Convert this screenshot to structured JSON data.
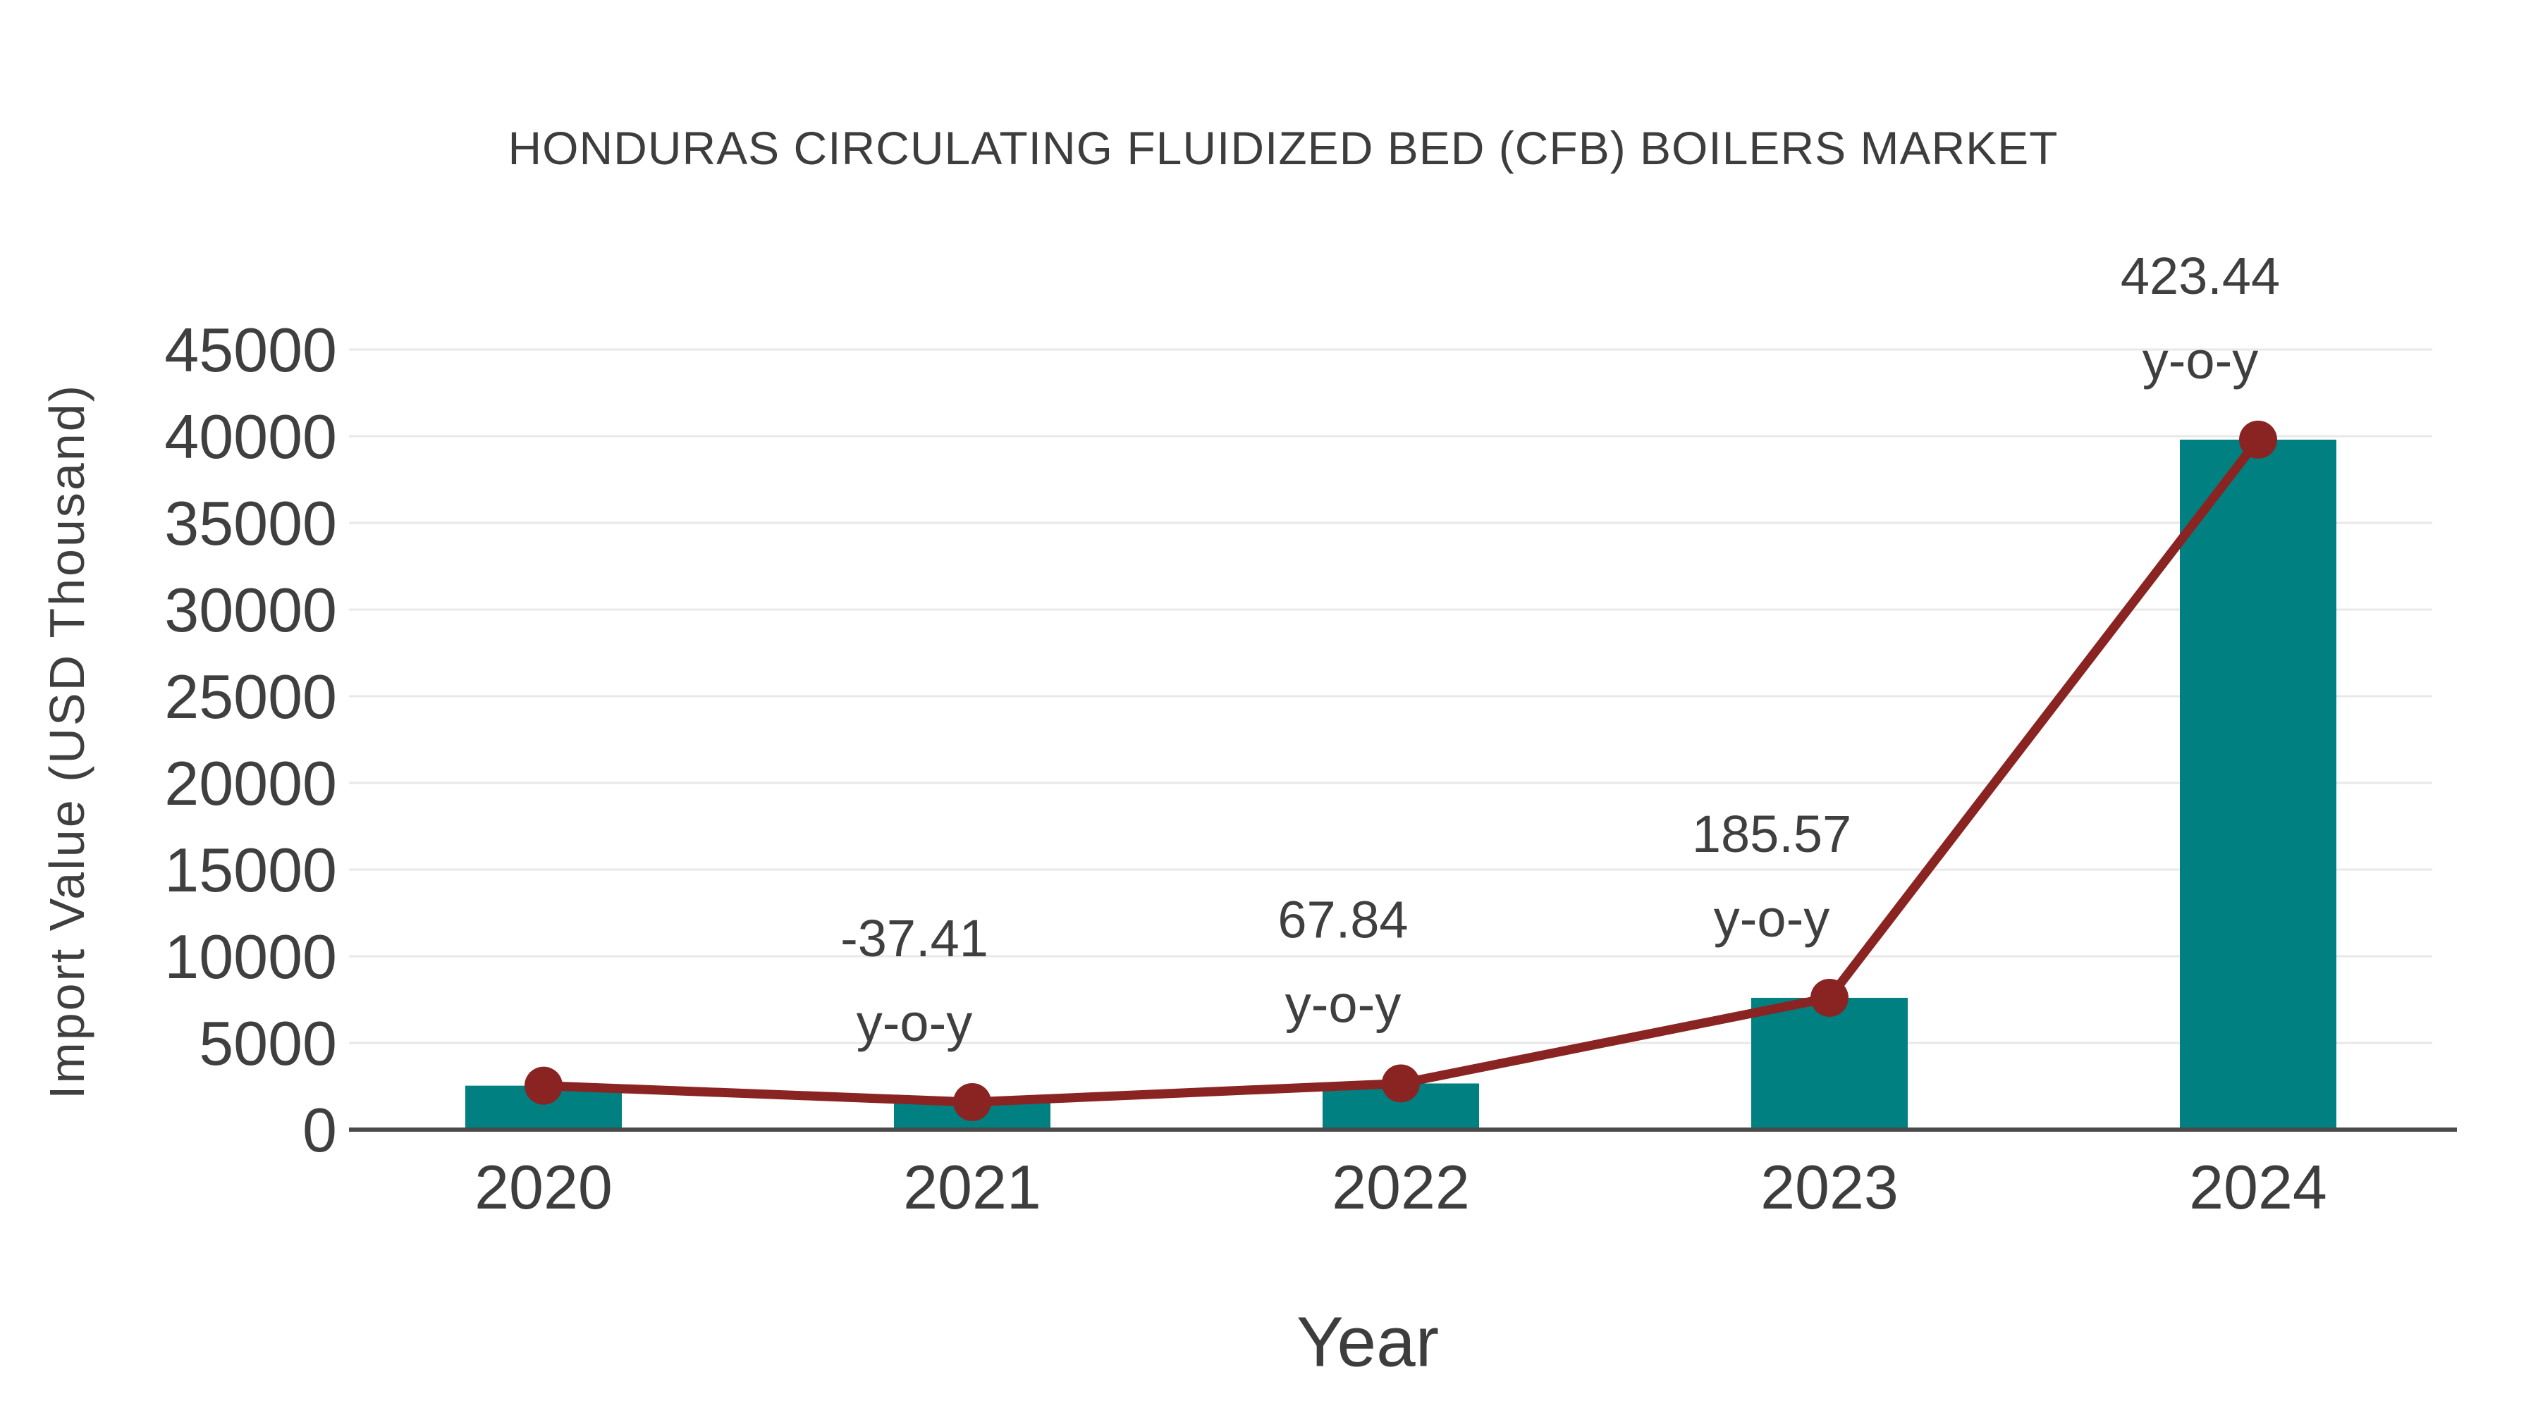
{
  "page": {
    "background_color": "#ffffff"
  },
  "chart_data": {
    "type": "bar",
    "title": "HONDURAS CIRCULATING FLUIDIZED BED (CFB) BOILERS MARKET",
    "xlabel": "Year",
    "ylabel": "Import Value (USD Thousand)",
    "categories": [
      "2020",
      "2021",
      "2022",
      "2023",
      "2024"
    ],
    "series": [
      {
        "name": "Import Value (bars)",
        "type": "bar",
        "values": [
          2535,
          1587,
          2663,
          7604,
          39802
        ],
        "color": "#008080"
      },
      {
        "name": "Import Value trend (line with markers)",
        "type": "line",
        "values": [
          2535,
          1587,
          2663,
          7604,
          39802
        ],
        "color": "#8a2423"
      }
    ],
    "annotations": [
      {
        "category": "2021",
        "value_text": "-37.41",
        "unit_text": "y-o-y"
      },
      {
        "category": "2022",
        "value_text": "67.84",
        "unit_text": "y-o-y"
      },
      {
        "category": "2023",
        "value_text": "185.57",
        "unit_text": "y-o-y"
      },
      {
        "category": "2024",
        "value_text": "423.44",
        "unit_text": "y-o-y"
      }
    ],
    "y_ticks": [
      0,
      5000,
      10000,
      15000,
      20000,
      25000,
      30000,
      35000,
      40000,
      45000
    ],
    "ylim": [
      0,
      45000
    ],
    "grid": "horizontal",
    "legend_position": "none",
    "colors": {
      "bar_fill": "#008080",
      "line_stroke": "#8a2423",
      "marker_fill": "#8a2423",
      "gridline": "#e8e8e8",
      "axis_line": "#4a4a4a",
      "text": "#3d3d3d"
    }
  }
}
